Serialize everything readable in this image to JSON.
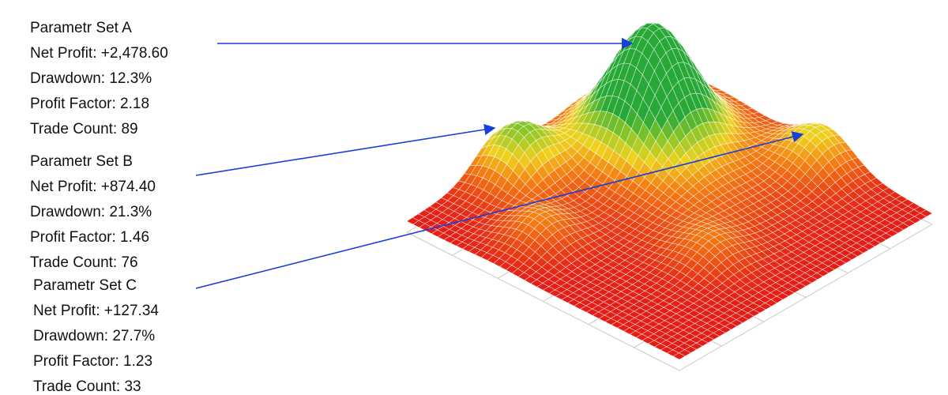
{
  "annotations": [
    {
      "title": "Parametr Set A",
      "lines": [
        "Net Profit: +2,478.60",
        "Drawdown: 12.3%",
        "Profit Factor: 2.18",
        "Trade Count: 89"
      ]
    },
    {
      "title": "Parametr Set B",
      "lines": [
        "Net Profit: +874.40",
        "Drawdown: 21.3%",
        "Profit Factor: 1.46",
        "Trade Count: 76"
      ]
    },
    {
      "title": "Parametr Set C",
      "lines": [
        "Net Profit: +127.34",
        "Drawdown: 27.7%",
        "Profit Factor: 1.23",
        "Trade Count: 33"
      ]
    }
  ]
}
